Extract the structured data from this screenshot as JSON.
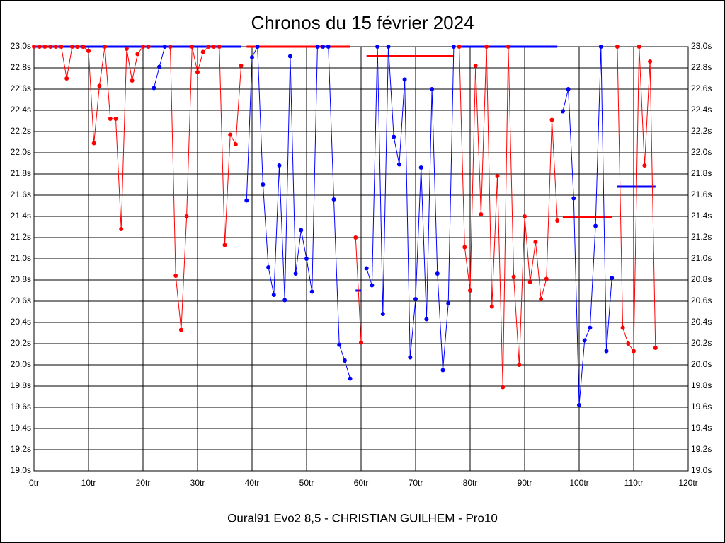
{
  "chart_data": {
    "type": "line",
    "title": "Chronos du 15 février 2024",
    "xlabel": "Oural91  Evo2  8,5 - CHRISTIAN GUILHEM - Pro10",
    "xlim": [
      0,
      120
    ],
    "ylim": [
      19.0,
      23.0
    ],
    "grid": true,
    "xticks": [
      {
        "value": 0,
        "label": "0tr"
      },
      {
        "value": 10,
        "label": "10tr"
      },
      {
        "value": 20,
        "label": "20tr"
      },
      {
        "value": 30,
        "label": "30tr"
      },
      {
        "value": 40,
        "label": "40tr"
      },
      {
        "value": 50,
        "label": "50tr"
      },
      {
        "value": 60,
        "label": "60tr"
      },
      {
        "value": 70,
        "label": "70tr"
      },
      {
        "value": 80,
        "label": "80tr"
      },
      {
        "value": 90,
        "label": "90tr"
      },
      {
        "value": 100,
        "label": "100tr"
      },
      {
        "value": 110,
        "label": "110tr"
      },
      {
        "value": 120,
        "label": "120tr"
      }
    ],
    "yticks": [
      {
        "value": 19.0,
        "label": "19.0s"
      },
      {
        "value": 19.2,
        "label": "19.2s"
      },
      {
        "value": 19.4,
        "label": "19.4s"
      },
      {
        "value": 19.6,
        "label": "19.6s"
      },
      {
        "value": 19.8,
        "label": "19.8s"
      },
      {
        "value": 20.0,
        "label": "20.0s"
      },
      {
        "value": 20.2,
        "label": "20.2s"
      },
      {
        "value": 20.4,
        "label": "20.4s"
      },
      {
        "value": 20.6,
        "label": "20.6s"
      },
      {
        "value": 20.8,
        "label": "20.8s"
      },
      {
        "value": 21.0,
        "label": "21.0s"
      },
      {
        "value": 21.2,
        "label": "21.2s"
      },
      {
        "value": 21.4,
        "label": "21.4s"
      },
      {
        "value": 21.6,
        "label": "21.6s"
      },
      {
        "value": 21.8,
        "label": "21.8s"
      },
      {
        "value": 22.0,
        "label": "22.0s"
      },
      {
        "value": 22.2,
        "label": "22.2s"
      },
      {
        "value": 22.4,
        "label": "22.4s"
      },
      {
        "value": 22.6,
        "label": "22.6s"
      },
      {
        "value": 22.8,
        "label": "22.8s"
      },
      {
        "value": 23.0,
        "label": "23.0s"
      }
    ],
    "series": [
      {
        "color": "#ff0000",
        "x": [
          0,
          1,
          2,
          3,
          4,
          5,
          6,
          7,
          8,
          9,
          10,
          11,
          12,
          13,
          14,
          15,
          16,
          17,
          18,
          19,
          20,
          21
        ],
        "values": [
          23.0,
          23.0,
          23.0,
          23.0,
          23.0,
          23.0,
          22.7,
          23.0,
          23.0,
          23.0,
          22.96,
          22.09,
          22.63,
          23.0,
          22.32,
          22.32,
          21.28,
          22.98,
          22.68,
          22.93,
          23.0,
          23.0
        ]
      },
      {
        "color": "#0000ff",
        "x": [
          22,
          23,
          24
        ],
        "values": [
          22.61,
          22.81,
          23.0
        ]
      },
      {
        "color": "#ff0000",
        "x": [
          25,
          26,
          27,
          28,
          29,
          30,
          31,
          32,
          33,
          34,
          35,
          36,
          37,
          38
        ],
        "values": [
          23.0,
          20.84,
          20.33,
          21.4,
          23.0,
          22.76,
          22.95,
          23.0,
          23.0,
          23.0,
          21.13,
          22.17,
          22.08,
          22.82
        ]
      },
      {
        "color": "#0000ff",
        "x": [
          39,
          40,
          41,
          42,
          43,
          44,
          45,
          46,
          47,
          48,
          49,
          50,
          51,
          52,
          53,
          54,
          55,
          56,
          57,
          58
        ],
        "values": [
          21.55,
          22.9,
          23.0,
          21.7,
          20.92,
          20.66,
          21.88,
          20.61,
          22.91,
          20.86,
          21.27,
          21.0,
          20.69,
          23.0,
          23.0,
          23.0,
          21.56,
          20.19,
          20.04,
          19.87
        ]
      },
      {
        "color": "#ff0000",
        "x": [
          59,
          60
        ],
        "values": [
          21.2,
          20.21
        ]
      },
      {
        "color": "#0000ff",
        "x": [
          61,
          62,
          63,
          64,
          65,
          66,
          67,
          68,
          69,
          70,
          71,
          72,
          73,
          74,
          75,
          76,
          77
        ],
        "values": [
          20.91,
          20.75,
          23.0,
          20.48,
          23.0,
          22.15,
          21.89,
          22.69,
          20.07,
          20.62,
          21.86,
          20.43,
          22.6,
          20.86,
          19.95,
          20.58,
          23.0
        ]
      },
      {
        "color": "#ff0000",
        "x": [
          78,
          79,
          80,
          81,
          82,
          83,
          84,
          85,
          86,
          87,
          88,
          89,
          90,
          91,
          92,
          93,
          94,
          95,
          96
        ],
        "values": [
          23.0,
          21.11,
          20.7,
          22.82,
          21.42,
          23.0,
          20.55,
          21.78,
          19.79,
          23.0,
          20.83,
          20.0,
          21.4,
          20.78,
          21.16,
          20.62,
          20.81,
          22.31,
          21.36
        ]
      },
      {
        "color": "#0000ff",
        "x": [
          97,
          98,
          99,
          100,
          101,
          102,
          103,
          104,
          105,
          106
        ],
        "values": [
          22.39,
          22.6,
          21.57,
          19.62,
          20.23,
          20.35,
          21.31,
          23.0,
          20.13,
          20.82
        ]
      },
      {
        "color": "#ff0000",
        "x": [
          107,
          108,
          109,
          110,
          111,
          112,
          113,
          114
        ],
        "values": [
          23.0,
          20.35,
          20.2,
          20.13,
          23.0,
          21.88,
          22.86,
          20.16
        ]
      }
    ],
    "averages": [
      {
        "color": "#0000ff",
        "x": [
          0,
          38
        ],
        "value": 23.0
      },
      {
        "color": "#ff0000",
        "x": [
          39,
          58
        ],
        "value": 23.0
      },
      {
        "color": "#0000ff",
        "x": [
          59,
          60
        ],
        "value": 20.7
      },
      {
        "color": "#ff0000",
        "x": [
          61,
          77
        ],
        "value": 22.91
      },
      {
        "color": "#0000ff",
        "x": [
          78,
          96
        ],
        "value": 23.0
      },
      {
        "color": "#ff0000",
        "x": [
          97,
          106
        ],
        "value": 21.39
      },
      {
        "color": "#0000ff",
        "x": [
          107,
          114
        ],
        "value": 21.68
      }
    ]
  }
}
